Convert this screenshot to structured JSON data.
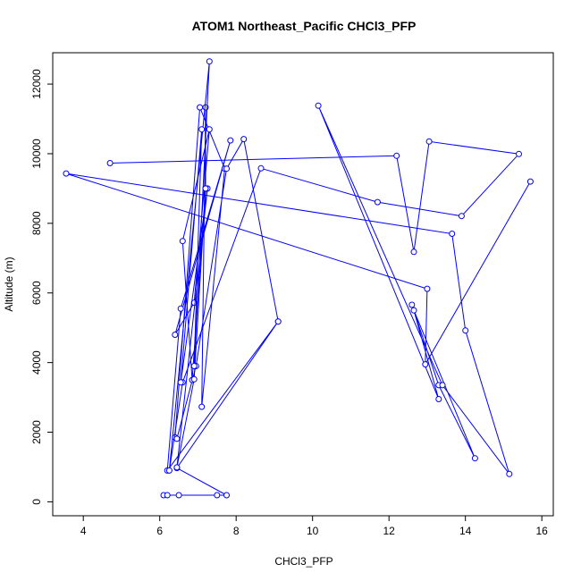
{
  "chart_data": {
    "type": "line",
    "title": "ATOM1 Northeast_Pacific CHCl3_PFP",
    "xlabel": "CHCl3_PFP",
    "ylabel": "Altitude (m)",
    "xlim": [
      3.2,
      16.3
    ],
    "ylim": [
      -400,
      12900
    ],
    "xticks": [
      4,
      6,
      8,
      10,
      12,
      14,
      16
    ],
    "yticks": [
      0,
      2000,
      4000,
      6000,
      8000,
      10000,
      12000
    ],
    "color": "#0000ff",
    "marker": "open-circle",
    "grid": false,
    "legend": "none",
    "series": [
      {
        "x": [
          6.1,
          6.2,
          6.5,
          7.5,
          7.75,
          6.45,
          9.1,
          6.2,
          6.55,
          7.85,
          6.4,
          6.9,
          7.3,
          6.6,
          6.85,
          7.2,
          7.2,
          7.1,
          7.7,
          7.05,
          6.4,
          6.45,
          6.95,
          7.75,
          8.2,
          9.1
        ],
        "y": [
          190,
          190,
          190,
          190,
          190,
          970,
          5180,
          900,
          5550,
          10380,
          4800,
          5720,
          10700,
          7490,
          3500,
          9000,
          11330,
          2730,
          9570,
          11330,
          1850,
          1810,
          3900,
          9570,
          10420,
          5180
        ]
      },
      {
        "x": [
          12.6,
          13.3,
          14.25,
          12.65,
          13.3,
          10.15,
          13.4,
          15.15,
          14.0,
          13.65,
          3.55,
          13.0,
          12.95,
          15.7
        ],
        "y": [
          5660,
          3350,
          1250,
          5500,
          2950,
          11380,
          3350,
          800,
          4920,
          7700,
          9430,
          6120,
          3950,
          9200
        ]
      },
      {
        "x": [
          4.7,
          12.2,
          12.65,
          13.05,
          15.4,
          13.9,
          11.7,
          8.65,
          6.6,
          6.25,
          7.3,
          6.9,
          7.1,
          6.55,
          7.25,
          6.45,
          6.9,
          7.2,
          7.2
        ],
        "y": [
          9730,
          9940,
          7180,
          10350,
          9990,
          8210,
          8610,
          9580,
          3430,
          900,
          12650,
          3900,
          10700,
          3430,
          9000,
          990,
          3520,
          9000,
          9000
        ]
      }
    ]
  }
}
